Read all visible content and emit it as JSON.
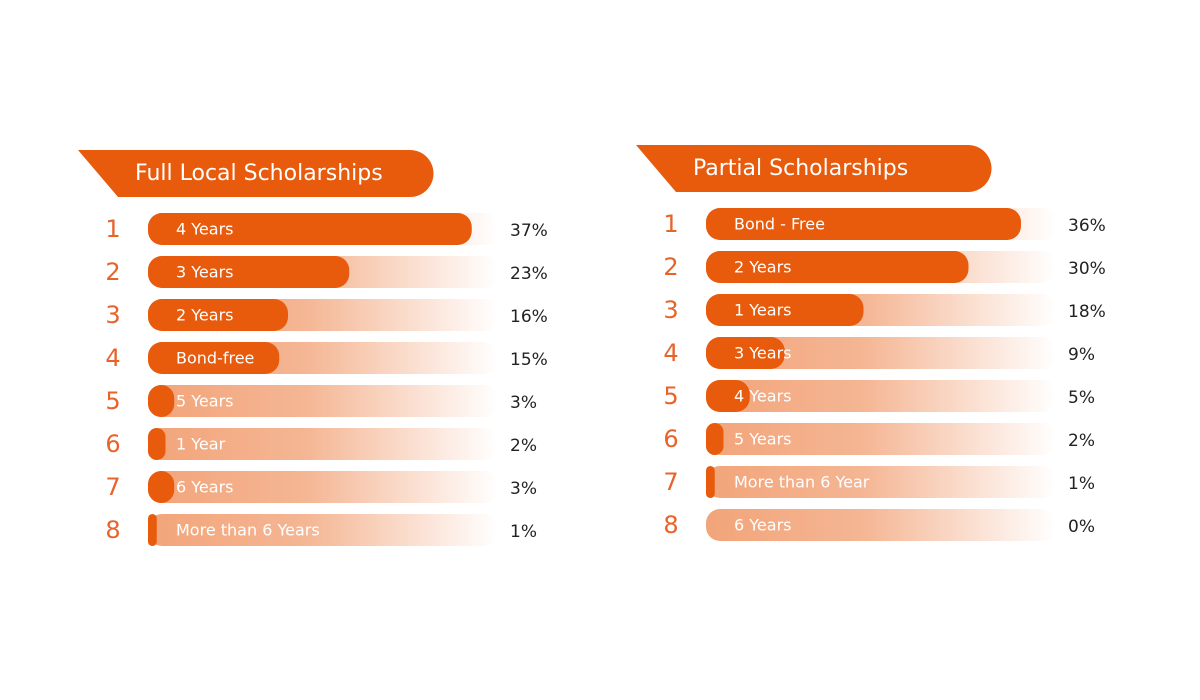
{
  "chart_data": [
    {
      "type": "bar",
      "title": "Full Local Scholarships",
      "ranks": [
        1,
        2,
        3,
        4,
        5,
        6,
        7,
        8
      ],
      "categories": [
        "4 Years",
        "3 Years",
        "2 Years",
        "Bond-free",
        "5 Years",
        "1 Year",
        "6 Years",
        "More than 6 Years"
      ],
      "values": [
        37,
        23,
        16,
        15,
        3,
        2,
        3,
        1
      ],
      "value_labels": [
        "37%",
        "23%",
        "16%",
        "15%",
        "3%",
        "2%",
        "3%",
        "1%"
      ],
      "color": "#e85a0c",
      "xlim": [
        0,
        40
      ]
    },
    {
      "type": "bar",
      "title": "Partial Scholarships",
      "ranks": [
        1,
        2,
        3,
        4,
        5,
        6,
        7,
        8
      ],
      "categories": [
        "Bond - Free",
        "2 Years",
        "1 Years",
        "3 Years",
        "4 Years",
        "5 Years",
        "More than 6 Year",
        "6 Years"
      ],
      "values": [
        36,
        30,
        18,
        9,
        5,
        2,
        1,
        0
      ],
      "value_labels": [
        "36%",
        "30%",
        "18%",
        "9%",
        "5%",
        "2%",
        "1%",
        "0%"
      ],
      "color": "#e85a0c",
      "xlim": [
        0,
        40
      ]
    }
  ]
}
